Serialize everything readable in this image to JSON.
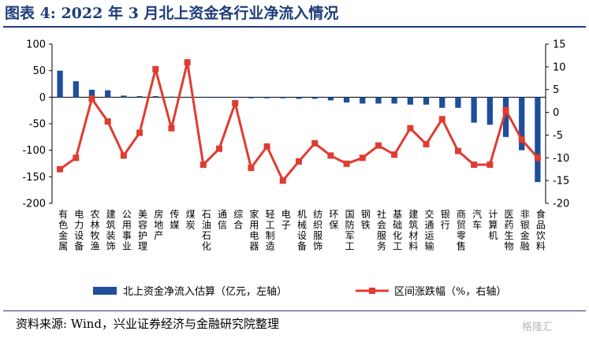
{
  "title": "图表 4:  2022 年 3 月北上资金各行业净流入情况",
  "source": "资料来源:  Wind，兴业证券经济与金融研究院整理",
  "watermark": "格隆汇",
  "colors": {
    "bar": "#1f4e9a",
    "line": "#e03c31",
    "title": "#1f3d7a"
  },
  "chart_data": {
    "type": "bar+line",
    "categories": [
      "有色金属",
      "电力设备",
      "农林牧渔",
      "建筑装饰",
      "公用事业",
      "美容护理",
      "房地产",
      "传媒",
      "煤炭",
      "石油石化",
      "通信",
      "综合",
      "家用电器",
      "轻工制造",
      "电子",
      "机械设备",
      "纺织服饰",
      "环保",
      "国防军工",
      "钢铁",
      "社会服务",
      "基础化工",
      "建筑材料",
      "交通运输",
      "银行",
      "商贸零售",
      "汽车",
      "计算机",
      "医药生物",
      "非银金融",
      "食品饮料"
    ],
    "y_left": {
      "min": -200,
      "max": 100,
      "step": 50,
      "ticks": [
        100,
        50,
        0,
        -50,
        -100,
        -150,
        -200
      ]
    },
    "y_right": {
      "min": -20,
      "max": 15,
      "step": 5,
      "ticks": [
        15,
        10,
        5,
        0,
        -5,
        -10,
        -15,
        -20
      ]
    },
    "series": [
      {
        "name": "北上资金净流入估算（亿元，左轴）",
        "type": "bar",
        "axis": "left",
        "values": [
          50,
          30,
          14,
          13,
          3,
          2,
          2,
          1,
          0,
          -1,
          -1,
          -1,
          -2,
          -2,
          -2,
          -3,
          -3,
          -6,
          -10,
          -12,
          -12,
          -12,
          -14,
          -14,
          -20,
          -20,
          -48,
          -52,
          -75,
          -100,
          -160
        ]
      },
      {
        "name": "区间涨跌幅（%，右轴）",
        "type": "line",
        "axis": "right",
        "values": [
          -12.5,
          -10,
          3,
          -2,
          -9.5,
          -4.5,
          9.5,
          -3.5,
          11,
          -11.5,
          -8,
          2,
          -12.2,
          -7.5,
          -15,
          -10.8,
          -6.8,
          -9.5,
          -11.3,
          -10,
          -7.3,
          -9.3,
          -3.5,
          -7,
          -1.5,
          -8.5,
          -11.5,
          -11.5,
          0.5,
          -6,
          -10
        ]
      }
    ]
  }
}
